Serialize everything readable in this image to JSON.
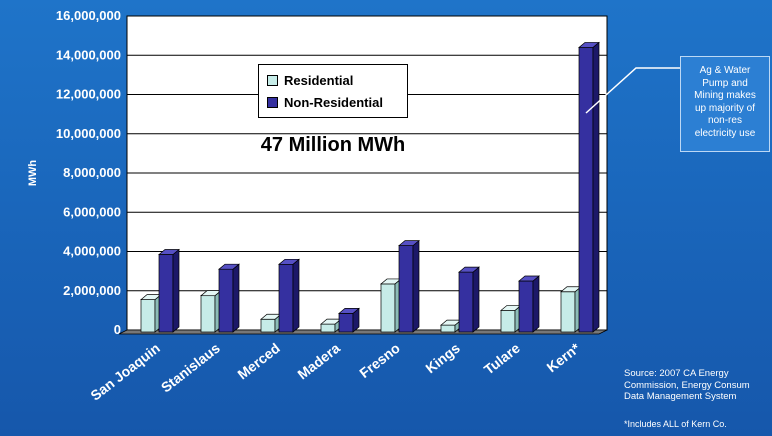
{
  "chart_data": {
    "type": "bar",
    "ylabel": "MWh",
    "ylim": [
      0,
      16000000
    ],
    "yticks": [
      "0",
      "2,000,000",
      "4,000,000",
      "6,000,000",
      "8,000,000",
      "10,000,000",
      "12,000,000",
      "14,000,000",
      "16,000,000"
    ],
    "ytick_values": [
      0,
      2000000,
      4000000,
      6000000,
      8000000,
      10000000,
      12000000,
      14000000,
      16000000
    ],
    "categories": [
      "San Joaquin",
      "Stanislaus",
      "Merced",
      "Madera",
      "Fresno",
      "Kings",
      "Tulare",
      "Kern*"
    ],
    "series": [
      {
        "name": "Residential",
        "values": [
          1650000,
          1850000,
          650000,
          400000,
          2450000,
          350000,
          1100000,
          2050000
        ]
      },
      {
        "name": "Non-Residential",
        "values": [
          3950000,
          3200000,
          3450000,
          950000,
          4400000,
          3050000,
          2600000,
          14500000
        ]
      }
    ],
    "annotation": "47 Million MWh",
    "grid": true,
    "legend_position": "top-left inside plot"
  },
  "colors": {
    "residential_front": "#c6ece8",
    "residential_side": "#8cbcb8",
    "residential_top": "#e4f7f5",
    "nonres_front": "#3530a0",
    "nonres_side": "#1c1868",
    "nonres_top": "#5650c4",
    "plot_bg": "#ffffff",
    "axis": "#000000"
  },
  "callout": {
    "text": "Ag & Water\nPump and\nMining makes\nup majority of\nnon-res\nelectricity use"
  },
  "source": {
    "text": "Source:  2007 CA Energy\nCommission, Energy Consum\nData Management System"
  },
  "footnote": {
    "text": "*Includes ALL of Kern Co."
  }
}
